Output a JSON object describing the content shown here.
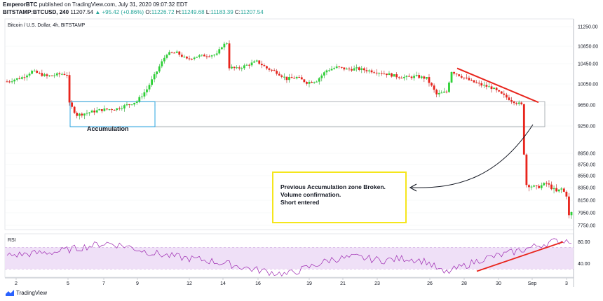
{
  "header": {
    "author": "EmperorBTC",
    "published": "published on TradingView.com, July 31, 2020 09:07:32 EDT",
    "symbol": "BITSTAMP:BTCUSD, 240",
    "last": "11207.54",
    "change": "▲ +95.42 (+0.86%)",
    "o_label": "O:",
    "o_value": "11226.72",
    "h_label": "H:",
    "h_value": "11249.68",
    "l_label": "L:",
    "l_value": "11183.39",
    "c_label": "C:",
    "c_value": "11207.54"
  },
  "footer": {
    "brand": "TradingView",
    "logo_icon": "tradingview-logo-icon"
  },
  "colors": {
    "up": "#26a69a",
    "bull_body": "#2dd136",
    "bear_body": "#e8241c",
    "rsi_line": "#9c27b0",
    "rsi_band": "#efe0f7",
    "box_blue": "#29a4e0",
    "box_gray": "#9aa0a6",
    "note_border": "#f5e61c",
    "trendline": "#e8241c"
  },
  "chart_data": [
    {
      "type": "candlestick",
      "title": "Bitcoin / U.S. Dollar, 4h, BITSTAMP",
      "y_ticks": [
        7750,
        7950,
        8150,
        8350,
        8550,
        8750,
        8950,
        9250,
        9650,
        10050,
        10450,
        10850,
        11250
      ],
      "ylim": [
        7600,
        11350
      ],
      "x_ticks": [
        "2",
        "5",
        "7",
        "9",
        "12",
        "14",
        "16",
        "19",
        "21",
        "23",
        "26",
        "28",
        "30",
        "Sep",
        "3"
      ],
      "annotations": [
        {
          "text": "Accumulation",
          "kind": "box-label"
        },
        {
          "text": "Previous Accumulation zone Broken.",
          "kind": "note"
        },
        {
          "text": "Volume confirmation.",
          "kind": "note"
        },
        {
          "text": "Short entered",
          "kind": "note"
        }
      ],
      "key_levels": {
        "accumulation_zone": [
          9250,
          9700
        ]
      }
    },
    {
      "type": "line",
      "title": "RSI",
      "y_ticks": [
        40,
        80
      ],
      "ylim": [
        15,
        95
      ],
      "band": [
        30,
        70
      ]
    }
  ]
}
